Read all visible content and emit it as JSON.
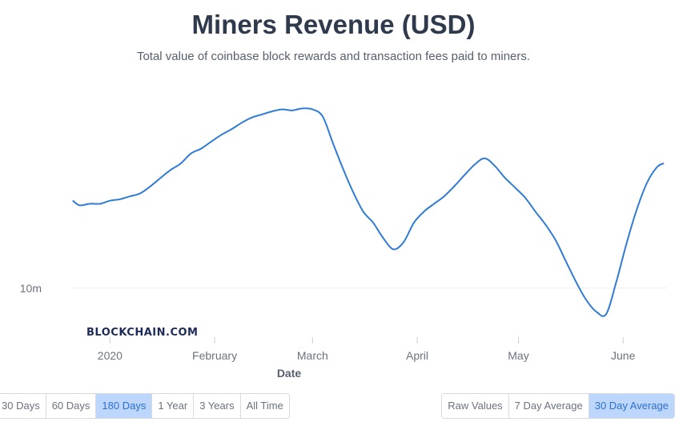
{
  "header": {
    "title": "Miners Revenue (USD)",
    "subtitle": "Total value of coinbase block rewards and transaction fees paid to miners."
  },
  "watermark": "BLOCKCHAIN.COM",
  "timespan_buttons": [
    {
      "label": "30 Days",
      "active": false
    },
    {
      "label": "60 Days",
      "active": false
    },
    {
      "label": "180 Days",
      "active": true
    },
    {
      "label": "1 Year",
      "active": false
    },
    {
      "label": "3 Years",
      "active": false
    },
    {
      "label": "All Time",
      "active": false
    }
  ],
  "average_buttons": [
    {
      "label": "Raw Values",
      "active": false
    },
    {
      "label": "7 Day Average",
      "active": false
    },
    {
      "label": "30 Day Average",
      "active": true
    }
  ],
  "colors": {
    "line": "#2f7bd6",
    "active_button_bg": "#bcd7fb",
    "active_button_text": "#2e6fd1"
  },
  "chart_data": {
    "type": "line",
    "title": "Miners Revenue (USD)",
    "subtitle": "Total value of coinbase block rewards and transaction fees paid to miners.",
    "xlabel": "Date",
    "ylabel": "",
    "x_ticks": [
      "2020",
      "February",
      "March",
      "April",
      "May",
      "June"
    ],
    "y_ticks": [
      {
        "label": "10m",
        "value": 10000000
      }
    ],
    "y_scale": "log",
    "ylim": [
      8500000,
      23000000
    ],
    "xlim": [
      "2019-12-21",
      "2020-06-14"
    ],
    "grid": "horizontal",
    "series": [
      {
        "name": "",
        "x": [
          "2019-12-21",
          "2019-12-23",
          "2019-12-26",
          "2019-12-29",
          "2020-01-01",
          "2020-01-04",
          "2020-01-07",
          "2020-01-10",
          "2020-01-13",
          "2020-01-16",
          "2020-01-19",
          "2020-01-22",
          "2020-01-25",
          "2020-01-28",
          "2020-01-31",
          "2020-02-03",
          "2020-02-06",
          "2020-02-09",
          "2020-02-12",
          "2020-02-15",
          "2020-02-18",
          "2020-02-21",
          "2020-02-24",
          "2020-02-27",
          "2020-03-01",
          "2020-03-04",
          "2020-03-07",
          "2020-03-10",
          "2020-03-13",
          "2020-03-16",
          "2020-03-19",
          "2020-03-22",
          "2020-03-25",
          "2020-03-28",
          "2020-03-31",
          "2020-04-03",
          "2020-04-06",
          "2020-04-09",
          "2020-04-12",
          "2020-04-15",
          "2020-04-18",
          "2020-04-21",
          "2020-04-24",
          "2020-04-27",
          "2020-04-30",
          "2020-05-03",
          "2020-05-06",
          "2020-05-09",
          "2020-05-12",
          "2020-05-15",
          "2020-05-18",
          "2020-05-21",
          "2020-05-24",
          "2020-05-27",
          "2020-05-30",
          "2020-06-02",
          "2020-06-05",
          "2020-06-08",
          "2020-06-11",
          "2020-06-13"
        ],
        "values": [
          14800000,
          14500000,
          14600000,
          14600000,
          14800000,
          14900000,
          15100000,
          15300000,
          15800000,
          16400000,
          17000000,
          17500000,
          18300000,
          18700000,
          19300000,
          19900000,
          20400000,
          21000000,
          21500000,
          21800000,
          22100000,
          22300000,
          22200000,
          22400000,
          22300000,
          21600000,
          19200000,
          17100000,
          15400000,
          14100000,
          13400000,
          12500000,
          11900000,
          12300000,
          13400000,
          14100000,
          14600000,
          15100000,
          15800000,
          16600000,
          17400000,
          17900000,
          17300000,
          16400000,
          15700000,
          15000000,
          14100000,
          13300000,
          12400000,
          11300000,
          10300000,
          9500000,
          9000000,
          8900000,
          10300000,
          12200000,
          14200000,
          16000000,
          17200000,
          17500000
        ]
      }
    ]
  }
}
